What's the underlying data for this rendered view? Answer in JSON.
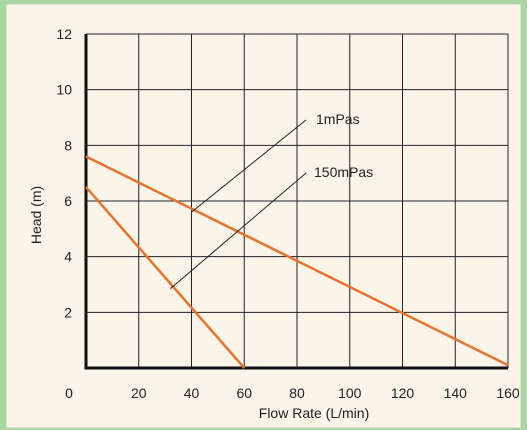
{
  "chart_data": {
    "type": "line",
    "xlabel": "Flow Rate (L/min)",
    "ylabel": "Head (m)",
    "xlim": [
      0,
      160
    ],
    "ylim": [
      0,
      12
    ],
    "x_ticks": [
      "0",
      "20",
      "40",
      "60",
      "80",
      "100",
      "120",
      "140",
      "160"
    ],
    "y_ticks": [
      "2",
      "4",
      "6",
      "8",
      "10",
      "12"
    ],
    "grid": true,
    "series": [
      {
        "name": "1mPas",
        "x": [
          0,
          160
        ],
        "y": [
          7.6,
          0.1
        ],
        "color": "#e8732a"
      },
      {
        "name": "150mPas",
        "x": [
          0,
          60
        ],
        "y": [
          6.5,
          0
        ],
        "color": "#e8732a"
      }
    ],
    "annotations": [
      {
        "text": "1mPas",
        "points_to": {
          "x": 40,
          "y": 5.6
        }
      },
      {
        "text": "150mPas",
        "points_to": {
          "x": 32,
          "y": 2.85
        }
      }
    ]
  },
  "colors": {
    "background": "#a9d7a3",
    "panel": "#fbf5e9",
    "grid": "#222222",
    "series": "#e8732a"
  }
}
